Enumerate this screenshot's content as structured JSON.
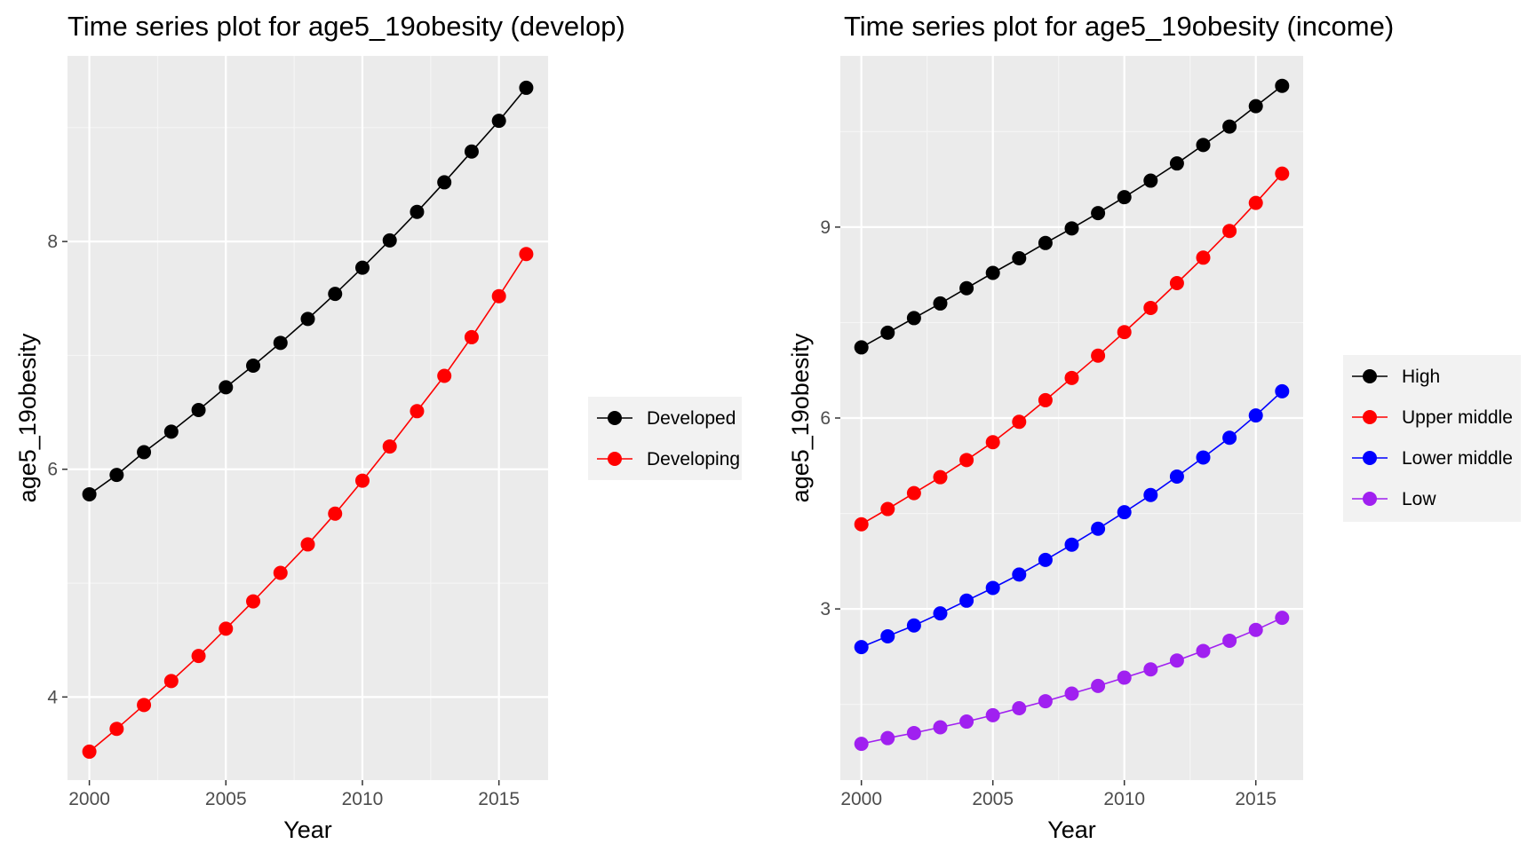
{
  "colors": {
    "panel_bg": "#ebebeb",
    "grid_major": "#ffffff",
    "grid_minor": "#f5f5f5",
    "tick": "#333333"
  },
  "chart_data": [
    {
      "type": "line",
      "title": "Time series plot for age5_19obesity (develop)",
      "xlabel": "Year",
      "ylabel": "age5_19obesity",
      "x": [
        2000,
        2001,
        2002,
        2003,
        2004,
        2005,
        2006,
        2007,
        2008,
        2009,
        2010,
        2011,
        2012,
        2013,
        2014,
        2015,
        2016
      ],
      "xlim": [
        1999.2,
        2016.8
      ],
      "ylim": [
        3.27,
        9.63
      ],
      "xticks": [
        2000,
        2005,
        2010,
        2015
      ],
      "yticks": [
        4,
        6,
        8
      ],
      "grid": true,
      "legend_position": "right",
      "series": [
        {
          "name": "Developed",
          "color": "#000000",
          "values": [
            5.78,
            5.95,
            6.15,
            6.33,
            6.52,
            6.72,
            6.91,
            7.11,
            7.32,
            7.54,
            7.77,
            8.01,
            8.26,
            8.52,
            8.79,
            9.06,
            9.35
          ]
        },
        {
          "name": "Developing",
          "color": "#ff0000",
          "values": [
            3.52,
            3.72,
            3.93,
            4.14,
            4.36,
            4.6,
            4.84,
            5.09,
            5.34,
            5.61,
            5.9,
            6.2,
            6.51,
            6.82,
            7.16,
            7.52,
            7.89
          ]
        }
      ]
    },
    {
      "type": "line",
      "title": "Time series plot for age5_19obesity (income)",
      "xlabel": "Year",
      "ylabel": "age5_19obesity",
      "x": [
        2000,
        2001,
        2002,
        2003,
        2004,
        2005,
        2006,
        2007,
        2008,
        2009,
        2010,
        2011,
        2012,
        2013,
        2014,
        2015,
        2016
      ],
      "xlim": [
        1999.2,
        2016.8
      ],
      "ylim": [
        0.31,
        11.69
      ],
      "xticks": [
        2000,
        2005,
        2010,
        2015
      ],
      "yticks": [
        3,
        6,
        9
      ],
      "grid": true,
      "legend_position": "right",
      "series": [
        {
          "name": "High",
          "color": "#000000",
          "values": [
            7.11,
            7.34,
            7.57,
            7.8,
            8.04,
            8.28,
            8.51,
            8.75,
            8.98,
            9.22,
            9.47,
            9.73,
            10.0,
            10.29,
            10.58,
            10.9,
            11.22
          ]
        },
        {
          "name": "Upper middle",
          "color": "#ff0000",
          "values": [
            4.33,
            4.57,
            4.82,
            5.07,
            5.34,
            5.62,
            5.94,
            6.28,
            6.63,
            6.98,
            7.35,
            7.73,
            8.12,
            8.52,
            8.94,
            9.38,
            9.84
          ]
        },
        {
          "name": "Lower middle",
          "color": "#0000ff",
          "values": [
            2.4,
            2.57,
            2.74,
            2.93,
            3.13,
            3.33,
            3.54,
            3.77,
            4.01,
            4.26,
            4.52,
            4.79,
            5.08,
            5.38,
            5.69,
            6.04,
            6.42
          ]
        },
        {
          "name": "Low",
          "color": "#a020f0",
          "values": [
            0.88,
            0.97,
            1.05,
            1.14,
            1.23,
            1.33,
            1.44,
            1.55,
            1.67,
            1.79,
            1.92,
            2.05,
            2.19,
            2.34,
            2.5,
            2.67,
            2.86
          ]
        }
      ]
    }
  ]
}
